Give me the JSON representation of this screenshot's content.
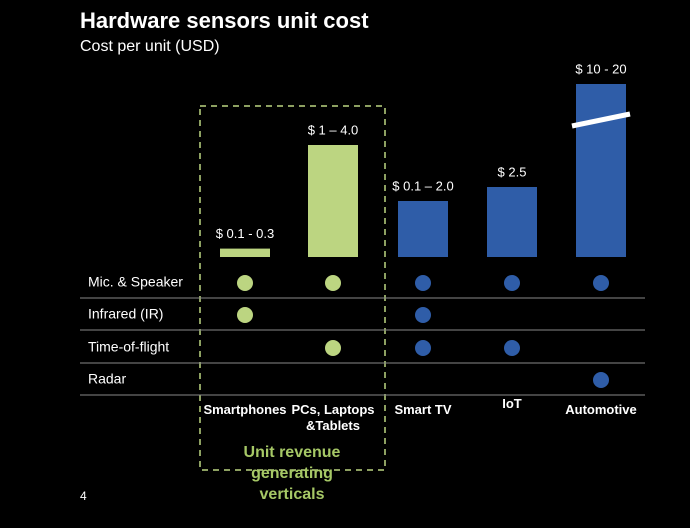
{
  "chart_data": {
    "type": "bar",
    "title": "Hardware sensors unit cost",
    "subtitle": "Cost per unit (USD)",
    "categories": [
      "Smartphones",
      "PCs, Laptops &Tablets",
      "Smart TV",
      "IoT",
      "Automotive"
    ],
    "values": [
      0.3,
      4.0,
      2.0,
      2.5,
      20
    ],
    "value_labels": [
      "$ 0.1 - 0.3",
      "$ 1 – 4.0",
      "$ 0.1 – 2.0",
      "$ 2.5",
      "$ 10 - 20"
    ],
    "colors": [
      "#bcd581",
      "#bcd581",
      "#2f5da8",
      "#2f5da8",
      "#2f5da8"
    ],
    "rows": [
      {
        "label": "Mic. & Speaker",
        "present": [
          true,
          true,
          true,
          true,
          true
        ]
      },
      {
        "label": "Infrared (IR)",
        "present": [
          true,
          false,
          true,
          false,
          false
        ]
      },
      {
        "label": "Time-of-flight",
        "present": [
          false,
          true,
          true,
          true,
          false
        ]
      },
      {
        "label": "Radar",
        "present": [
          false,
          false,
          false,
          false,
          true
        ]
      }
    ],
    "annotation": "Unit revenue generating verticals",
    "page_number": "4"
  }
}
